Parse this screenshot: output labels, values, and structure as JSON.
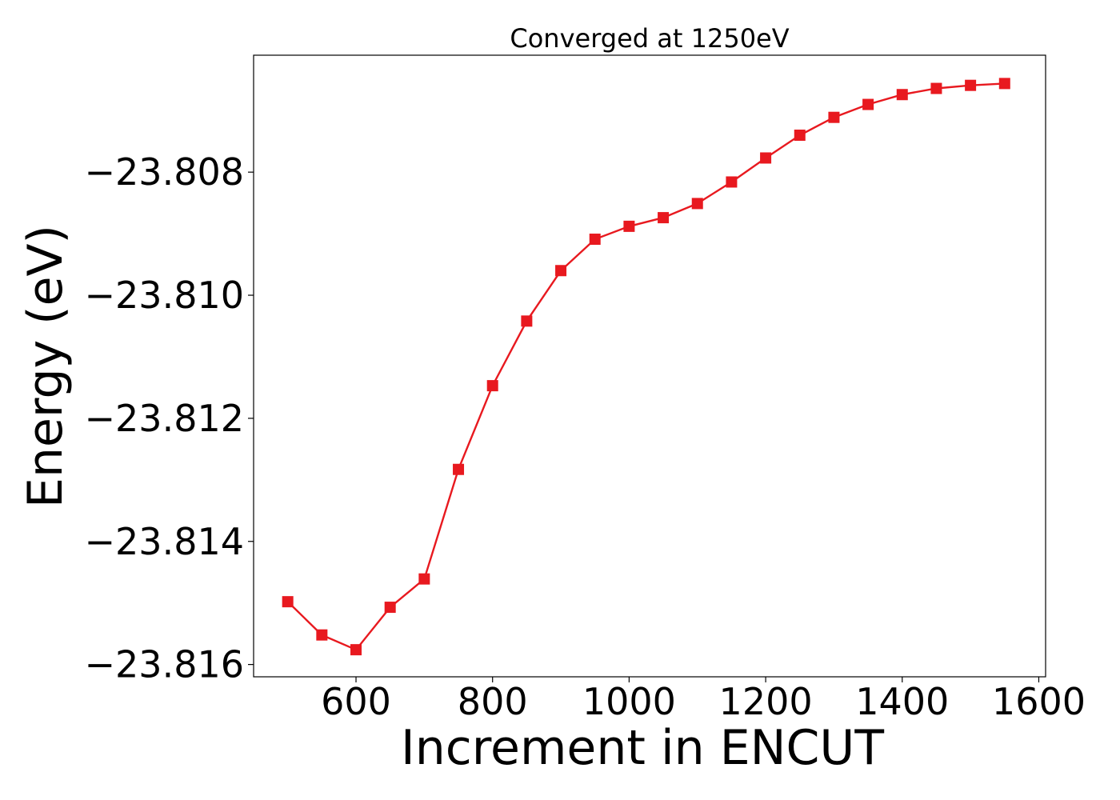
{
  "chart_data": {
    "type": "line",
    "title": "Converged at 1250eV",
    "xlabel": "Increment in ENCUT",
    "ylabel": "Energy (eV)",
    "xlim": [
      450,
      1610
    ],
    "ylim": [
      -23.8162,
      -23.8061
    ],
    "x_ticks": [
      600,
      800,
      1000,
      1200,
      1400,
      1600
    ],
    "x_tick_labels": [
      "600",
      "800",
      "1000",
      "1200",
      "1400",
      "1600"
    ],
    "y_ticks": [
      -23.808,
      -23.81,
      -23.812,
      -23.814,
      -23.816
    ],
    "y_tick_labels": [
      "−23.808",
      "−23.810",
      "−23.812",
      "−23.814",
      "−23.816"
    ],
    "grid": false,
    "series": [
      {
        "color": "#e8191f",
        "marker": "square",
        "x": [
          500,
          550,
          600,
          650,
          700,
          750,
          800,
          850,
          900,
          950,
          1000,
          1050,
          1100,
          1150,
          1200,
          1250,
          1300,
          1350,
          1400,
          1450,
          1500,
          1550
        ],
        "y": [
          -23.81498,
          -23.81552,
          -23.81576,
          -23.81507,
          -23.81461,
          -23.81283,
          -23.81147,
          -23.81042,
          -23.8096,
          -23.80909,
          -23.80888,
          -23.80874,
          -23.80851,
          -23.80816,
          -23.80777,
          -23.8074,
          -23.80711,
          -23.8069,
          -23.80674,
          -23.80664,
          -23.80659,
          -23.80656
        ]
      }
    ]
  }
}
